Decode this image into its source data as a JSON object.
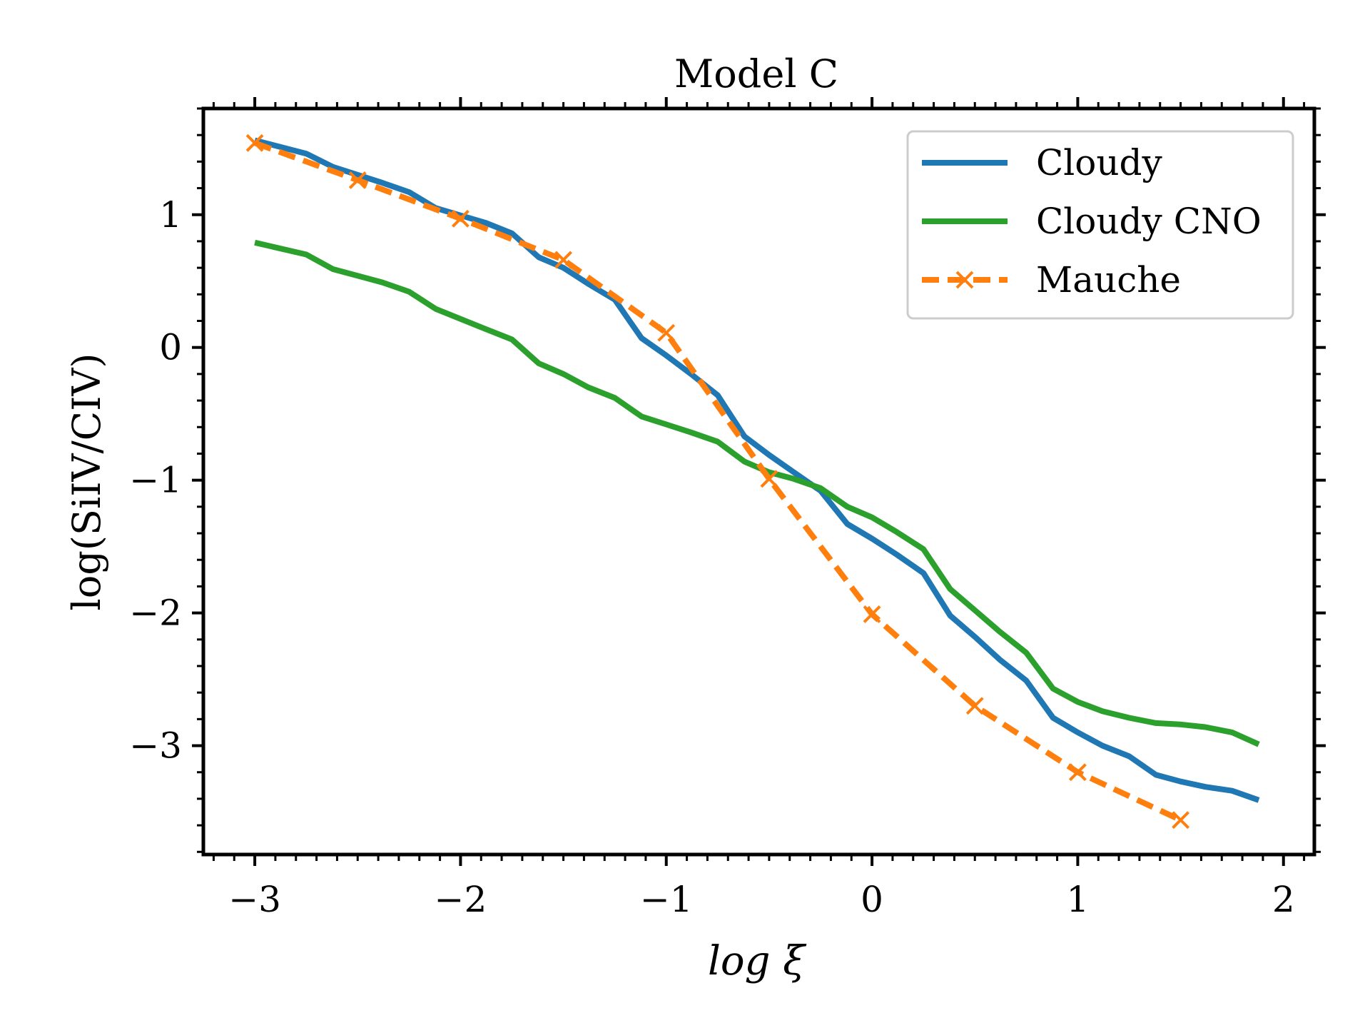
{
  "chart_data": {
    "type": "line",
    "title": "Model C",
    "xlabel": "log ξ",
    "ylabel": "log(SiIV/CIV)",
    "xlim": [
      -3.25,
      2.15
    ],
    "ylim": [
      -3.82,
      1.8
    ],
    "xticks": [
      -3,
      -2,
      -1,
      0,
      1,
      2
    ],
    "xtick_labels": [
      "−3",
      "−2",
      "−1",
      "0",
      "1",
      "2"
    ],
    "yticks": [
      -3,
      -2,
      -1,
      0,
      1
    ],
    "ytick_labels": [
      "−3",
      "−2",
      "−1",
      "0",
      "1"
    ],
    "grid": false,
    "legend": "top-right",
    "series": [
      {
        "name": "Cloudy",
        "color": "#1f77b4",
        "style": "solid",
        "x": [
          -3.0,
          -2.75,
          -2.62,
          -2.38,
          -2.25,
          -2.12,
          -1.88,
          -1.75,
          -1.62,
          -1.5,
          -1.38,
          -1.25,
          -1.12,
          -1.0,
          -0.88,
          -0.75,
          -0.62,
          -0.5,
          -0.38,
          -0.25,
          -0.12,
          0.0,
          0.12,
          0.25,
          0.38,
          0.5,
          0.62,
          0.75,
          0.88,
          1.0,
          1.12,
          1.25,
          1.38,
          1.5,
          1.62,
          1.75,
          1.88
        ],
        "y": [
          1.56,
          1.46,
          1.36,
          1.24,
          1.17,
          1.05,
          0.94,
          0.86,
          0.68,
          0.6,
          0.48,
          0.36,
          0.07,
          -0.06,
          -0.2,
          -0.36,
          -0.67,
          -0.81,
          -0.94,
          -1.08,
          -1.33,
          -1.44,
          -1.56,
          -1.7,
          -2.02,
          -2.18,
          -2.35,
          -2.51,
          -2.79,
          -2.9,
          -3.0,
          -3.08,
          -3.22,
          -3.27,
          -3.31,
          -3.34,
          -3.41
        ]
      },
      {
        "name": "Cloudy CNO",
        "color": "#2ca02c",
        "style": "solid",
        "x": [
          -3.0,
          -2.75,
          -2.62,
          -2.38,
          -2.25,
          -2.12,
          -1.88,
          -1.75,
          -1.62,
          -1.5,
          -1.38,
          -1.25,
          -1.12,
          -1.0,
          -0.88,
          -0.75,
          -0.62,
          -0.5,
          -0.38,
          -0.25,
          -0.12,
          0.0,
          0.12,
          0.25,
          0.38,
          0.5,
          0.62,
          0.75,
          0.88,
          1.0,
          1.12,
          1.25,
          1.38,
          1.5,
          1.62,
          1.75,
          1.88
        ],
        "y": [
          0.79,
          0.7,
          0.59,
          0.49,
          0.42,
          0.29,
          0.14,
          0.06,
          -0.12,
          -0.2,
          -0.3,
          -0.38,
          -0.52,
          -0.58,
          -0.64,
          -0.71,
          -0.86,
          -0.94,
          -0.99,
          -1.06,
          -1.2,
          -1.28,
          -1.39,
          -1.52,
          -1.82,
          -1.98,
          -2.14,
          -2.3,
          -2.57,
          -2.67,
          -2.74,
          -2.79,
          -2.83,
          -2.84,
          -2.86,
          -2.9,
          -2.99
        ]
      },
      {
        "name": "Mauche",
        "color": "#ff7f0e",
        "style": "dashed",
        "marker": "x",
        "x": [
          -3.0,
          -2.5,
          -2.0,
          -1.5,
          -1.0,
          -0.5,
          0.0,
          0.5,
          1.0,
          1.5
        ],
        "y": [
          1.54,
          1.26,
          0.97,
          0.66,
          0.11,
          -0.99,
          -2.01,
          -2.7,
          -3.2,
          -3.56
        ]
      }
    ]
  }
}
